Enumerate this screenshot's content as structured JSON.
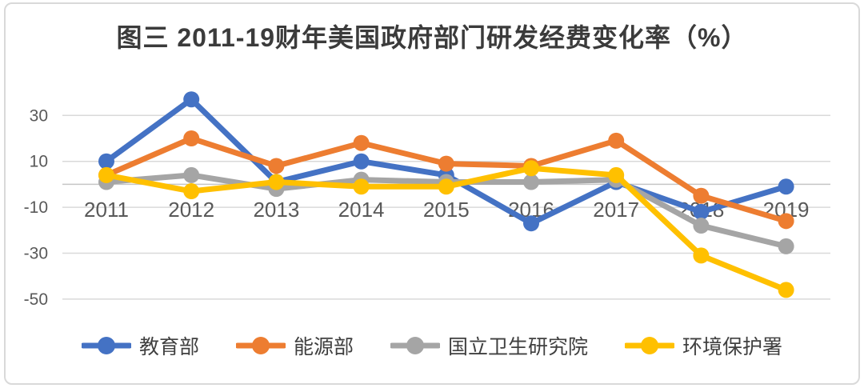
{
  "chart_data": {
    "type": "line",
    "title": "图三 2011-19财年美国政府部门研发经费变化率（%）",
    "xlabel": "",
    "ylabel": "",
    "categories": [
      "2011",
      "2012",
      "2013",
      "2014",
      "2015",
      "2016",
      "2017",
      "2018",
      "2019"
    ],
    "series": [
      {
        "name": "教育部",
        "color": "#4472C4",
        "values": [
          10,
          37,
          1,
          10,
          4,
          -17,
          1,
          -12,
          -1
        ]
      },
      {
        "name": "能源部",
        "color": "#ED7D31",
        "values": [
          4,
          20,
          8,
          18,
          9,
          8,
          19,
          -5,
          -16
        ]
      },
      {
        "name": "国立卫生研究院",
        "color": "#A5A5A5",
        "values": [
          1,
          4,
          -2,
          2,
          1,
          1,
          2,
          -18,
          -27
        ]
      },
      {
        "name": "环境保护署",
        "color": "#FFC000",
        "values": [
          4,
          -3,
          1,
          -1,
          -1,
          7,
          4,
          -31,
          -46
        ]
      }
    ],
    "yticks": [
      30,
      10,
      -10,
      -30,
      -50
    ],
    "ylim": [
      -50,
      40
    ],
    "grid": true,
    "legend_position": "bottom"
  },
  "colors": {
    "gridline": "#d9d9d9",
    "zero_axis": "#c6c6c6",
    "tick_label": "#595959",
    "category_label": "#595959",
    "title": "#3b3b3b",
    "legend_label": "#404040",
    "card_border": "#d9d9d9",
    "background": "#ffffff"
  }
}
